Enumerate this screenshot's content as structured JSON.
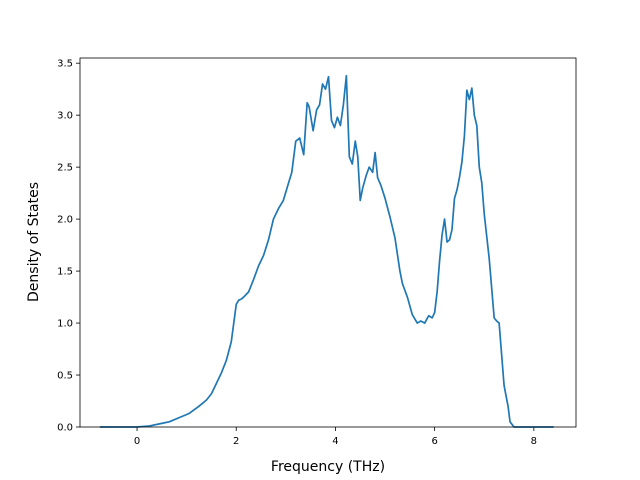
{
  "chart_data": {
    "type": "line",
    "title": "",
    "xlabel": "Frequency (THz)",
    "ylabel": "Density of States",
    "xlim": [
      -1.15,
      8.85
    ],
    "ylim": [
      0.0,
      3.5
    ],
    "xticks": [
      0,
      2,
      4,
      6,
      8
    ],
    "xtick_labels": [
      "0",
      "2",
      "4",
      "6",
      "8"
    ],
    "yticks": [
      0.0,
      0.5,
      1.0,
      1.5,
      2.0,
      2.5,
      3.0,
      3.5
    ],
    "ytick_labels": [
      "0.0",
      "0.5",
      "1.0",
      "1.5",
      "2.0",
      "2.5",
      "3.0",
      "3.5"
    ],
    "grid": false,
    "legend": "none",
    "line_color": "#1f77b4",
    "series": [
      {
        "x": [
          -0.75,
          -0.5,
          -0.25,
          0.0,
          0.25,
          0.45,
          0.65,
          0.85,
          1.05,
          1.25,
          1.4,
          1.5,
          1.6,
          1.7,
          1.8,
          1.9,
          2.0,
          2.05,
          2.1,
          2.15,
          2.25,
          2.35,
          2.45,
          2.55,
          2.65,
          2.75,
          2.85,
          2.95,
          3.05,
          3.12,
          3.2,
          3.28,
          3.36,
          3.43,
          3.47,
          3.55,
          3.62,
          3.68,
          3.74,
          3.8,
          3.86,
          3.92,
          3.98,
          4.04,
          4.1,
          4.16,
          4.22,
          4.28,
          4.34,
          4.4,
          4.45,
          4.5,
          4.55,
          4.62,
          4.68,
          4.75,
          4.8,
          4.85,
          4.92,
          5.0,
          5.1,
          5.2,
          5.3,
          5.35,
          5.45,
          5.55,
          5.65,
          5.72,
          5.8,
          5.88,
          5.95,
          6.0,
          6.05,
          6.1,
          6.15,
          6.2,
          6.25,
          6.3,
          6.35,
          6.4,
          6.45,
          6.5,
          6.55,
          6.6,
          6.65,
          6.7,
          6.75,
          6.8,
          6.85,
          6.9,
          6.95,
          7.0,
          7.1,
          7.2,
          7.25,
          7.3,
          7.4,
          7.48,
          7.52,
          7.6,
          7.65,
          7.7,
          8.0,
          8.4
        ],
        "y": [
          0.0,
          0.0,
          0.0,
          0.0,
          0.01,
          0.03,
          0.05,
          0.09,
          0.13,
          0.2,
          0.26,
          0.32,
          0.42,
          0.52,
          0.64,
          0.82,
          1.18,
          1.22,
          1.23,
          1.25,
          1.3,
          1.42,
          1.55,
          1.65,
          1.8,
          2.0,
          2.1,
          2.18,
          2.34,
          2.45,
          2.75,
          2.78,
          2.62,
          3.12,
          3.08,
          2.85,
          3.05,
          3.1,
          3.3,
          3.25,
          3.37,
          2.95,
          2.88,
          2.98,
          2.9,
          3.1,
          3.38,
          2.6,
          2.53,
          2.75,
          2.6,
          2.18,
          2.3,
          2.42,
          2.5,
          2.45,
          2.64,
          2.4,
          2.32,
          2.2,
          2.02,
          1.82,
          1.5,
          1.38,
          1.25,
          1.08,
          1.0,
          1.02,
          1.0,
          1.07,
          1.05,
          1.1,
          1.3,
          1.6,
          1.85,
          2.0,
          1.78,
          1.8,
          1.9,
          2.2,
          2.28,
          2.4,
          2.55,
          2.8,
          3.24,
          3.15,
          3.26,
          3.0,
          2.9,
          2.5,
          2.35,
          2.05,
          1.62,
          1.05,
          1.02,
          1.0,
          0.4,
          0.2,
          0.05,
          0.0,
          0.0,
          0.0,
          0.0,
          0.0
        ]
      }
    ]
  }
}
